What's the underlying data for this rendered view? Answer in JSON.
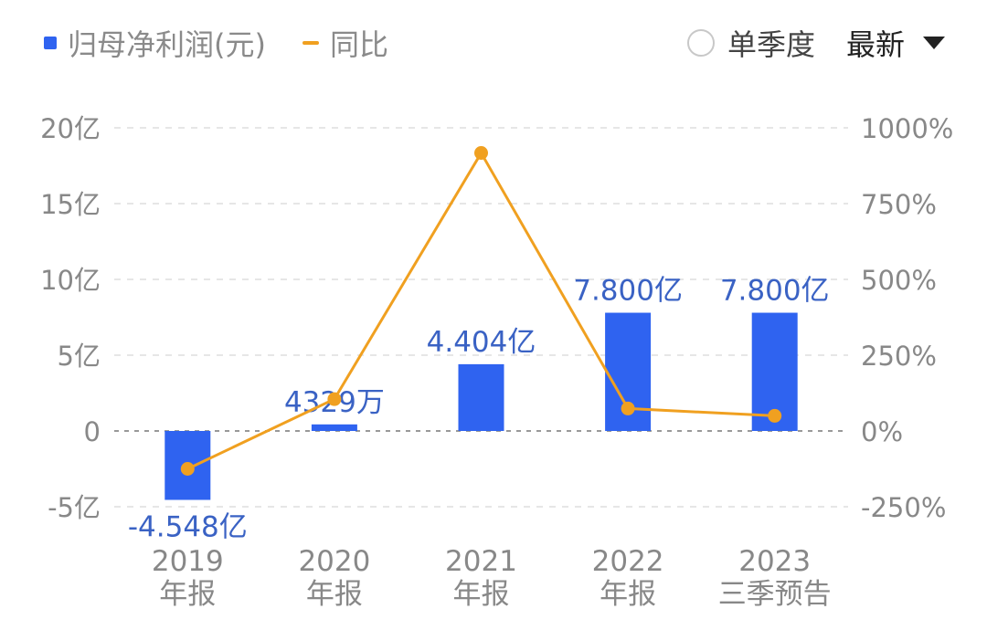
{
  "legend": {
    "bar_label": "归母净利润(元)",
    "line_label": "同比"
  },
  "controls": {
    "single_season_label": "单季度",
    "period_label": "最新",
    "period_icon": "caret-down-icon"
  },
  "colors": {
    "bar": "#2f63f0",
    "line": "#f0a020",
    "grid": "#e6e6e6",
    "zero": "#999999",
    "axis_text": "#888888",
    "value_text": "#3a62c4"
  },
  "chart_data": {
    "type": "bar",
    "categories": [
      [
        "2019",
        "年报"
      ],
      [
        "2020",
        "年报"
      ],
      [
        "2021",
        "年报"
      ],
      [
        "2022",
        "年报"
      ],
      [
        "2023",
        "三季预告"
      ]
    ],
    "series": [
      {
        "name": "归母净利润(元)",
        "type": "bar",
        "axis": "left",
        "values": [
          -4.548,
          0.4329,
          4.404,
          7.8,
          7.8
        ],
        "labels": [
          "-4.548亿",
          "4329万",
          "4.404亿",
          "7.800亿",
          "7.800亿"
        ]
      },
      {
        "name": "同比",
        "type": "line",
        "axis": "right",
        "values": [
          -125,
          105,
          917,
          74,
          50
        ]
      }
    ],
    "y_left": {
      "ticks": [
        20,
        15,
        10,
        5,
        0,
        -5
      ],
      "tick_labels": [
        "20亿",
        "15亿",
        "10亿",
        "5亿",
        "0",
        "-5亿"
      ],
      "range": [
        -5,
        20
      ]
    },
    "y_right": {
      "ticks": [
        1000,
        750,
        500,
        250,
        0,
        -250
      ],
      "tick_labels": [
        "1000%",
        "750%",
        "500%",
        "250%",
        "0%",
        "-250%"
      ],
      "range": [
        -250,
        1000
      ]
    },
    "grid": true,
    "legend_position": "top-left"
  }
}
